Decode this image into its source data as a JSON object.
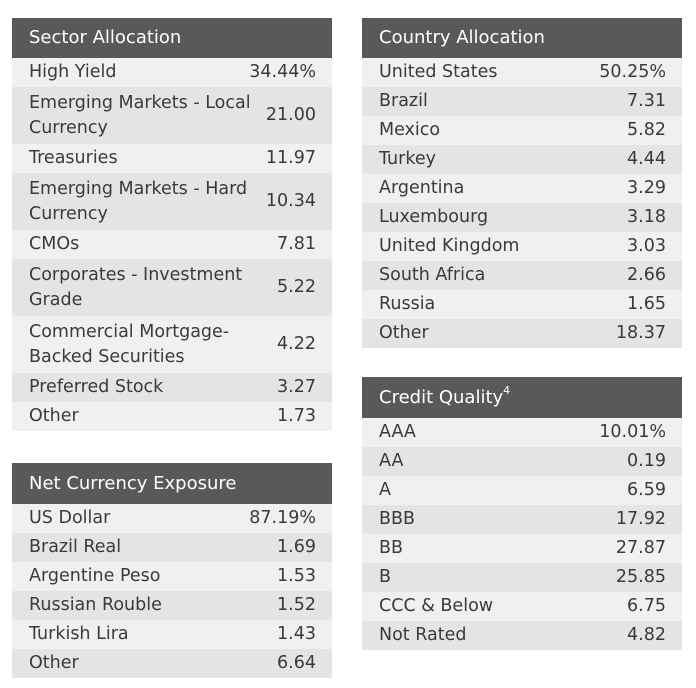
{
  "sector_allocation": {
    "title": "Sector Allocation",
    "rows": [
      {
        "label": "High Yield",
        "value": "34.44%"
      },
      {
        "label": "Emerging Markets - Local Currency",
        "value": "21.00"
      },
      {
        "label": "Treasuries",
        "value": "11.97"
      },
      {
        "label": "Emerging Markets - Hard Currency",
        "value": "10.34"
      },
      {
        "label": "CMOs",
        "value": "7.81"
      },
      {
        "label": "Corporates - Investment Grade",
        "value": "5.22"
      },
      {
        "label": "Commercial Mortgage-Backed Securities",
        "value": "4.22"
      },
      {
        "label": "Preferred Stock",
        "value": "3.27"
      },
      {
        "label": "Other",
        "value": "1.73"
      }
    ]
  },
  "net_currency_exposure": {
    "title": "Net Currency Exposure",
    "rows": [
      {
        "label": "US Dollar",
        "value": "87.19%"
      },
      {
        "label": "Brazil Real",
        "value": "1.69"
      },
      {
        "label": "Argentine Peso",
        "value": "1.53"
      },
      {
        "label": "Russian Rouble",
        "value": "1.52"
      },
      {
        "label": "Turkish Lira",
        "value": "1.43"
      },
      {
        "label": "Other",
        "value": "6.64"
      }
    ]
  },
  "country_allocation": {
    "title": "Country Allocation",
    "rows": [
      {
        "label": "United States",
        "value": "50.25%"
      },
      {
        "label": "Brazil",
        "value": "7.31"
      },
      {
        "label": "Mexico",
        "value": "5.82"
      },
      {
        "label": "Turkey",
        "value": "4.44"
      },
      {
        "label": "Argentina",
        "value": "3.29"
      },
      {
        "label": "Luxembourg",
        "value": "3.18"
      },
      {
        "label": "United Kingdom",
        "value": "3.03"
      },
      {
        "label": "South Africa",
        "value": "2.66"
      },
      {
        "label": "Russia",
        "value": "1.65"
      },
      {
        "label": "Other",
        "value": "18.37"
      }
    ]
  },
  "credit_quality": {
    "title": "Credit Quality",
    "footnote": "4",
    "rows": [
      {
        "label": "AAA",
        "value": "10.01%"
      },
      {
        "label": "AA",
        "value": "0.19"
      },
      {
        "label": "A",
        "value": "6.59"
      },
      {
        "label": "BBB",
        "value": "17.92"
      },
      {
        "label": "BB",
        "value": "27.87"
      },
      {
        "label": "B",
        "value": "25.85"
      },
      {
        "label": "CCC & Below",
        "value": "6.75"
      },
      {
        "label": "Not Rated",
        "value": "4.82"
      }
    ]
  }
}
